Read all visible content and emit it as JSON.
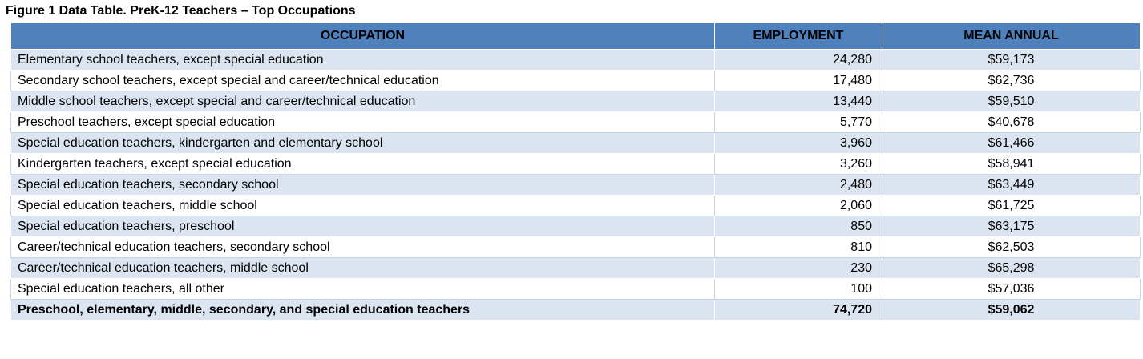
{
  "caption": "Figure 1 Data Table. PreK-12 Teachers – Top Occupations",
  "columns": [
    "OCCUPATION",
    "EMPLOYMENT",
    "MEAN ANNUAL"
  ],
  "rows": [
    {
      "occupation": "Elementary school teachers, except special education",
      "employment": "24,280",
      "mean_annual": "$59,173"
    },
    {
      "occupation": "Secondary school teachers, except special and career/technical education",
      "employment": "17,480",
      "mean_annual": "$62,736"
    },
    {
      "occupation": "Middle school teachers, except special and career/technical education",
      "employment": "13,440",
      "mean_annual": "$59,510"
    },
    {
      "occupation": "Preschool teachers, except special education",
      "employment": "5,770",
      "mean_annual": "$40,678"
    },
    {
      "occupation": "Special education teachers, kindergarten and elementary school",
      "employment": "3,960",
      "mean_annual": "$61,466"
    },
    {
      "occupation": "Kindergarten teachers, except special education",
      "employment": "3,260",
      "mean_annual": "$58,941"
    },
    {
      "occupation": "Special education teachers, secondary school",
      "employment": "2,480",
      "mean_annual": "$63,449"
    },
    {
      "occupation": "Special education teachers, middle school",
      "employment": "2,060",
      "mean_annual": "$61,725"
    },
    {
      "occupation": "Special education teachers, preschool",
      "employment": "850",
      "mean_annual": "$63,175"
    },
    {
      "occupation": "Career/technical education teachers, secondary school",
      "employment": "810",
      "mean_annual": "$62,503"
    },
    {
      "occupation": "Career/technical education teachers, middle school",
      "employment": "230",
      "mean_annual": "$65,298"
    },
    {
      "occupation": "Special education teachers, all other",
      "employment": "100",
      "mean_annual": "$57,036"
    }
  ],
  "total": {
    "occupation": "Preschool, elementary, middle, secondary, and special education teachers",
    "employment": "74,720",
    "mean_annual": "$59,062"
  },
  "colors": {
    "header_bg": "#4f81bd",
    "band_bg": "#dbe5f1",
    "plain_bg": "#ffffff"
  }
}
